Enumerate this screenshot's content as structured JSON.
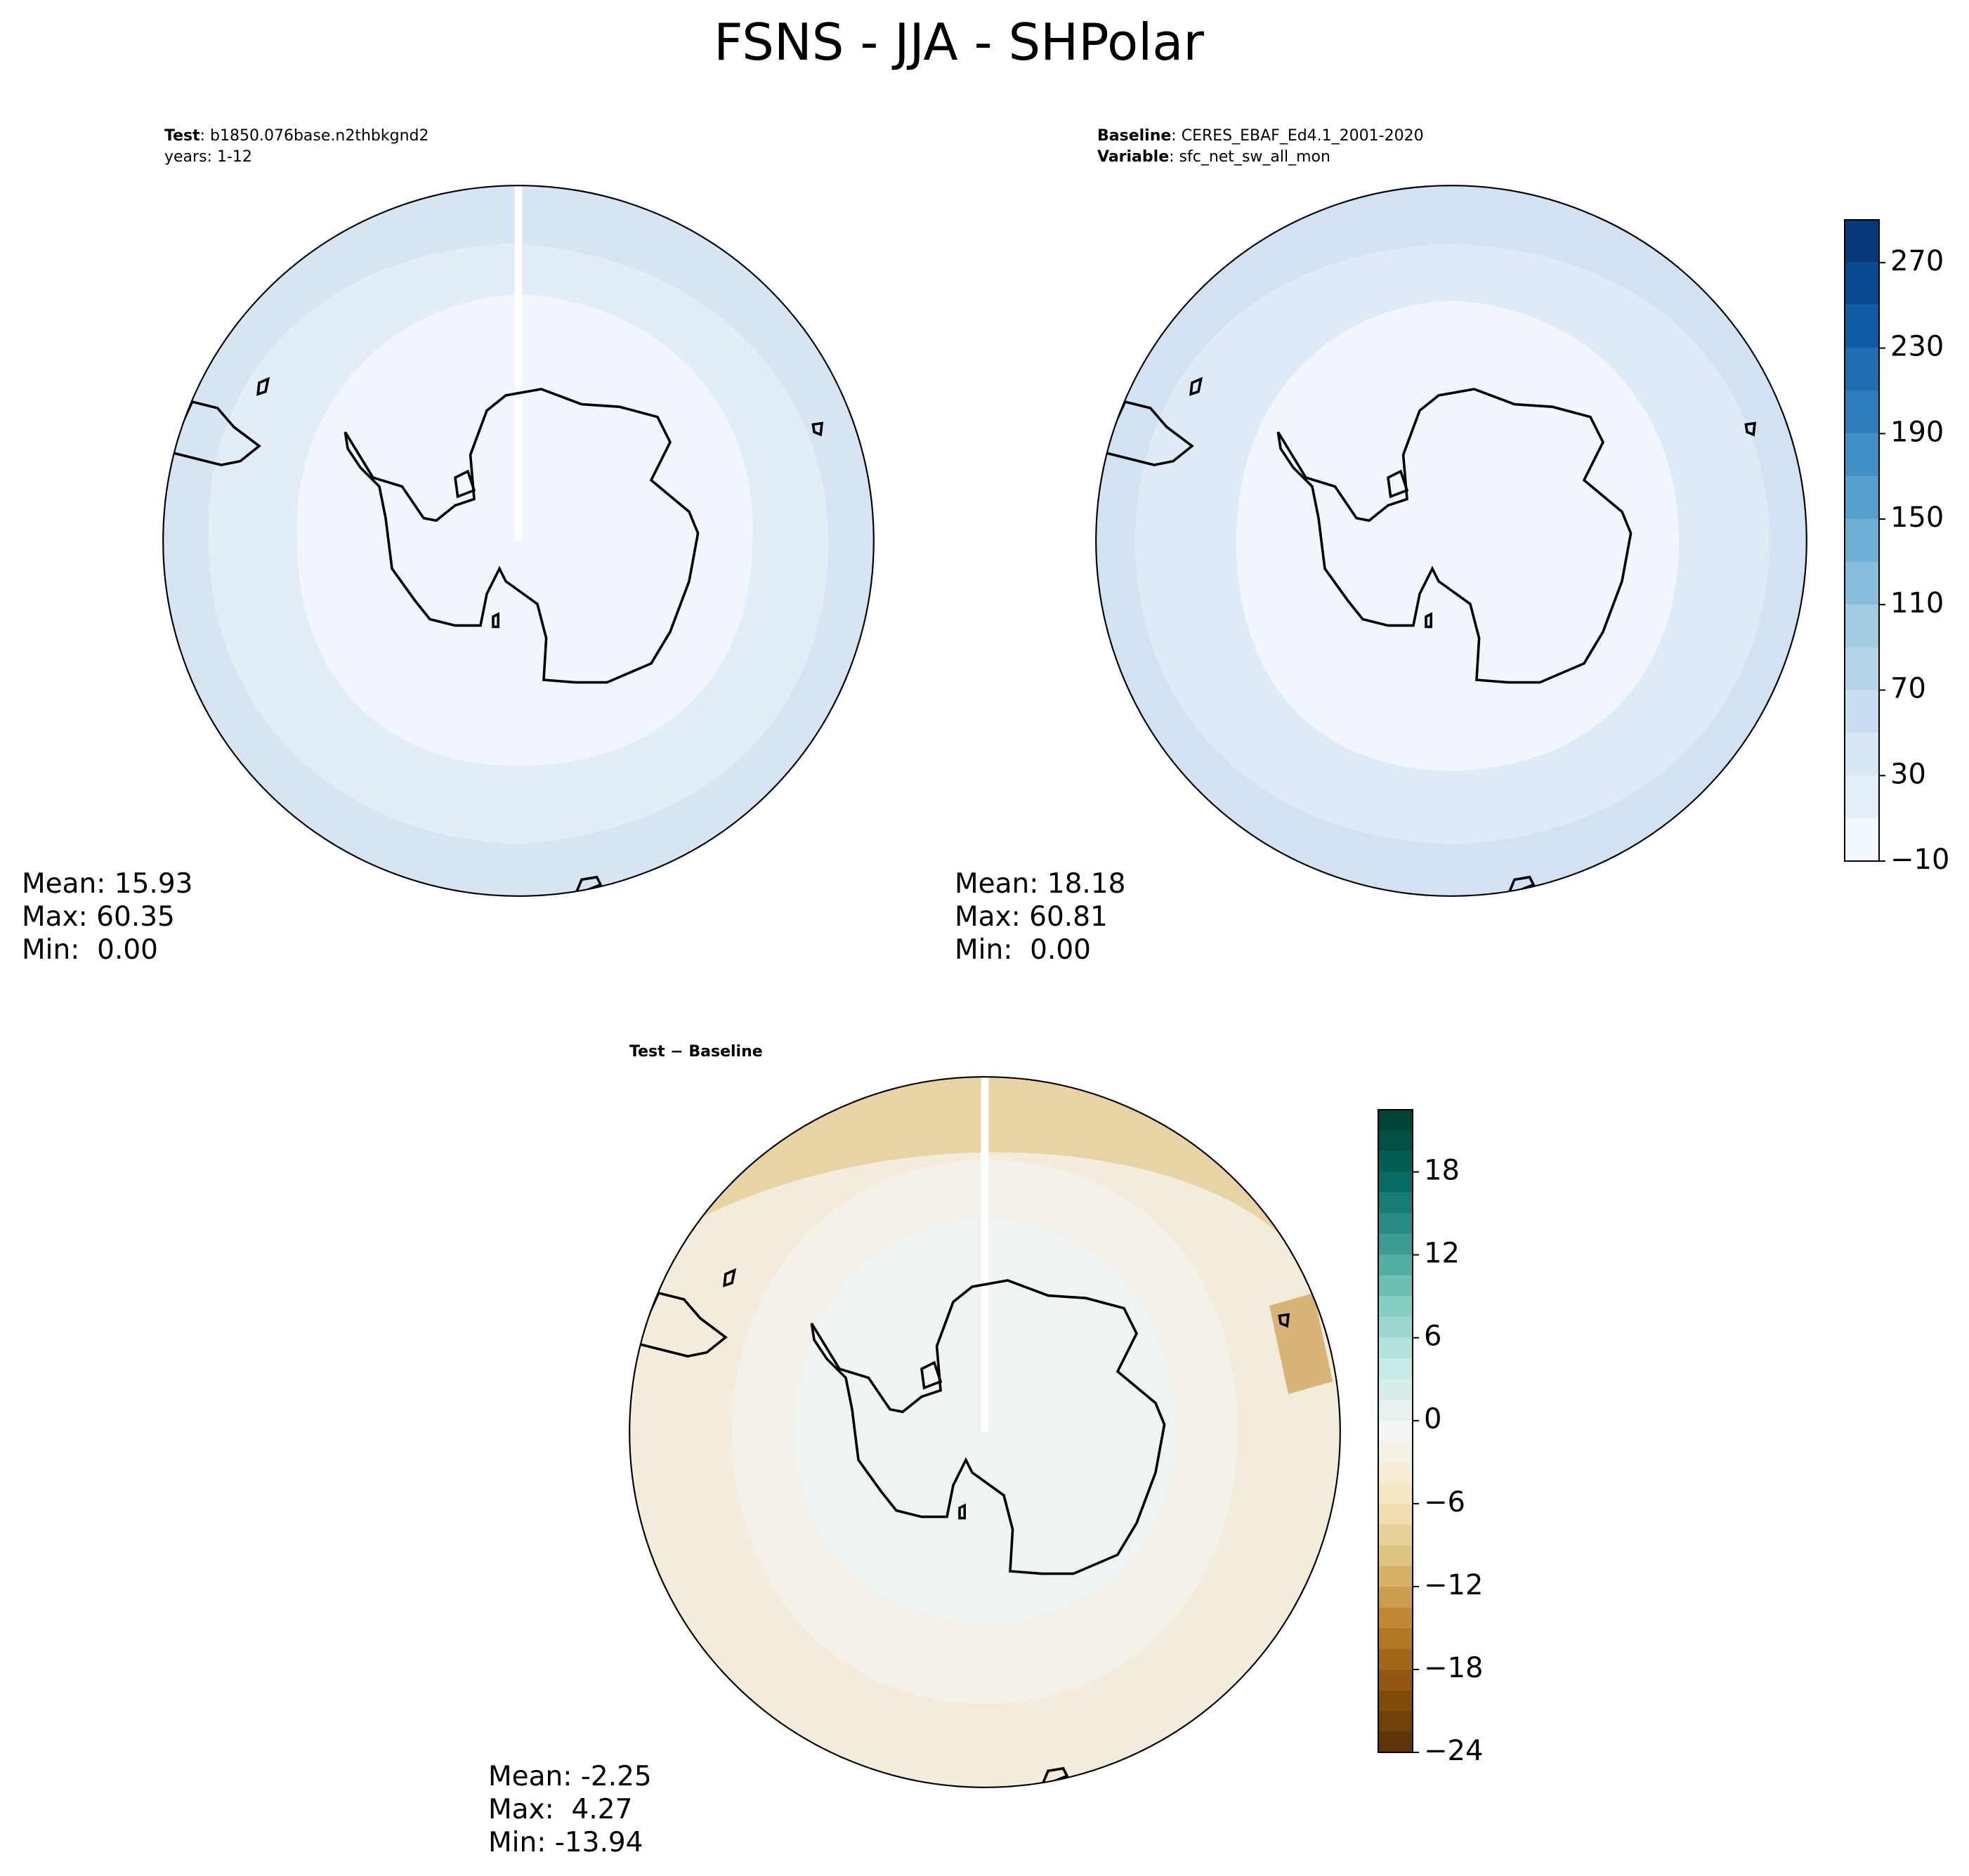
{
  "title": "FSNS - JJA - SHPolar",
  "panels": [
    {
      "header": [
        {
          "key": "Test",
          "text": ": b1850.076base.n2thbkgnd2"
        },
        {
          "text": "years: 1-12"
        }
      ],
      "stats": [
        "Mean: 15.93",
        "Max: 60.35",
        "Min:  0.00"
      ]
    },
    {
      "header": [
        {
          "key": "Baseline",
          "text": ": CERES_EBAF_Ed4.1_2001-2020"
        },
        {
          "key": "Variable",
          "text": ": sfc_net_sw_all_mon"
        }
      ],
      "stats": [
        "Mean: 18.18",
        "Max: 60.81",
        "Min:  0.00"
      ]
    },
    {
      "header": [
        {
          "key": "Test − Baseline"
        }
      ],
      "stats": [
        "Mean: -2.25",
        "Max:  4.27",
        "Min: -13.94"
      ]
    }
  ],
  "colorbars": [
    {
      "lim": [
        -10,
        290
      ],
      "step": 20,
      "ticks": [
        {
          "value": -10,
          "label": "−10"
        },
        30,
        70,
        110,
        150,
        190,
        230,
        270
      ],
      "colors": [
        "#f7fbff",
        "#deebf7",
        "#c6dbef",
        "#9ecae1",
        "#6baed6",
        "#4292c6",
        "#2171b5",
        "#08519c",
        "#08306b"
      ]
    },
    {
      "lim": [
        -24,
        22.5
      ],
      "step": 1.5,
      "ticks": [
        {
          "value": -24,
          "label": "−24"
        },
        {
          "value": -18,
          "label": "−18"
        },
        {
          "value": -12,
          "label": "−12"
        },
        {
          "value": -6,
          "label": "−6"
        },
        0,
        6,
        12,
        18
      ],
      "colors": [
        "#543005",
        "#8c510a",
        "#bf812d",
        "#dfc27d",
        "#f6e8c3",
        "#f5f5f5",
        "#c7eae5",
        "#80cdc1",
        "#35978f",
        "#01665e",
        "#003c30"
      ]
    }
  ]
}
